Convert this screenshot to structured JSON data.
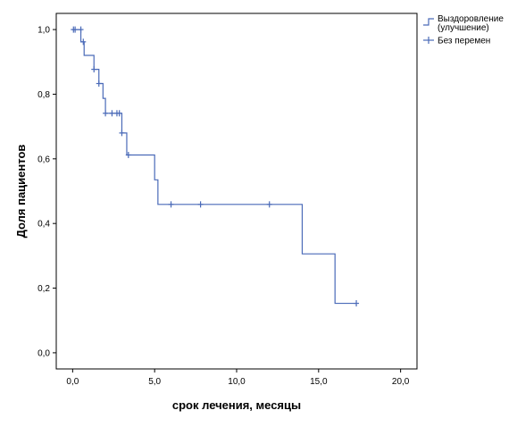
{
  "chart_data": {
    "type": "line",
    "xlabel": "срок лечения, месяцы",
    "ylabel": "Доля пациентов",
    "xlim": [
      -1,
      21
    ],
    "ylim": [
      -0.05,
      1.05
    ],
    "x_ticks": [
      0,
      5,
      10,
      15,
      20
    ],
    "x_tick_labels": [
      "0,0",
      "5,0",
      "10,0",
      "15,0",
      "20,0"
    ],
    "y_ticks": [
      0,
      0.2,
      0.4,
      0.6,
      0.8,
      1.0
    ],
    "y_tick_labels": [
      "0,0",
      "0,2",
      "0,4",
      "0,6",
      "0,8",
      "1,0"
    ],
    "grid": false,
    "legend_position": "top-right",
    "series": [
      {
        "name": "Выздоровление (улучшение)",
        "name_lines": [
          "Выздоровление",
          "(улучшение)"
        ],
        "style": "step",
        "color": "#4a6ab8",
        "x": [
          0,
          0.5,
          0.7,
          1.3,
          1.6,
          1.85,
          2.0,
          3.0,
          3.3,
          5.0,
          5.2,
          14.0,
          16.0,
          17.3
        ],
        "y": [
          1.0,
          0.962,
          0.92,
          0.877,
          0.833,
          0.787,
          0.741,
          0.68,
          0.612,
          0.535,
          0.459,
          0.306,
          0.153,
          0.153
        ]
      },
      {
        "name": "Без перемен",
        "style": "censor-markers",
        "color": "#4a6ab8",
        "x": [
          0.05,
          0.15,
          0.5,
          0.65,
          1.3,
          1.6,
          2.0,
          2.4,
          2.7,
          2.85,
          3.0,
          3.4,
          6.0,
          7.8,
          12.0,
          17.3
        ],
        "y": [
          1.0,
          1.0,
          1.0,
          0.962,
          0.877,
          0.833,
          0.741,
          0.741,
          0.741,
          0.741,
          0.68,
          0.612,
          0.459,
          0.459,
          0.459,
          0.153
        ]
      }
    ]
  }
}
